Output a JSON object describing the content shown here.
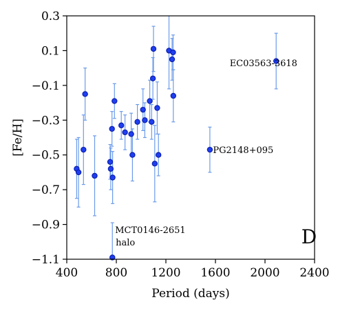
{
  "chart_data": {
    "type": "scatter",
    "xlabel": "Period (days)",
    "ylabel": "[Fe/H]",
    "xlim": [
      400,
      2400
    ],
    "ylim": [
      -1.1,
      0.3
    ],
    "xticks": [
      400,
      800,
      1200,
      1600,
      2000,
      2400
    ],
    "xtick_labels": [
      "400",
      "800",
      "1200",
      "1600",
      "2000",
      "2400"
    ],
    "yticks": [
      0.3,
      0.1,
      -0.1,
      -0.3,
      -0.5,
      -0.7,
      -0.9,
      -1.1
    ],
    "ytick_labels": [
      "0.3",
      "0.1",
      "−0.1",
      "−0.3",
      "−0.5",
      "−0.7",
      "−0.9",
      "−1.1"
    ],
    "grid": false,
    "colors": {
      "marker_face": "#1f3ff0",
      "marker_edge": "#0b1fb0",
      "errorbar": "#6b9bea"
    },
    "points": [
      {
        "x": 480,
        "y": -0.58,
        "err": 0.17
      },
      {
        "x": 495,
        "y": -0.6,
        "err": 0.2
      },
      {
        "x": 535,
        "y": -0.47,
        "err": 0.2
      },
      {
        "x": 548,
        "y": -0.15,
        "err": 0.15
      },
      {
        "x": 625,
        "y": -0.62,
        "err": 0.23
      },
      {
        "x": 750,
        "y": -0.54,
        "err": 0.1
      },
      {
        "x": 755,
        "y": -0.58,
        "err": 0.12
      },
      {
        "x": 765,
        "y": -0.35,
        "err": 0.1
      },
      {
        "x": 770,
        "y": -0.63,
        "err": 0.15
      },
      {
        "x": 768,
        "y": -1.09,
        "err": 0.2
      },
      {
        "x": 785,
        "y": -0.19,
        "err": 0.1
      },
      {
        "x": 840,
        "y": -0.33,
        "err": 0.08
      },
      {
        "x": 870,
        "y": -0.37,
        "err": 0.1
      },
      {
        "x": 920,
        "y": -0.38,
        "err": 0.12
      },
      {
        "x": 930,
        "y": -0.5,
        "err": 0.15
      },
      {
        "x": 970,
        "y": -0.31,
        "err": 0.1
      },
      {
        "x": 1015,
        "y": -0.24,
        "err": 0.12
      },
      {
        "x": 1030,
        "y": -0.3,
        "err": 0.1
      },
      {
        "x": 1070,
        "y": -0.19,
        "err": 0.12
      },
      {
        "x": 1085,
        "y": -0.31,
        "err": 0.1
      },
      {
        "x": 1095,
        "y": -0.06,
        "err": 0.12
      },
      {
        "x": 1100,
        "y": 0.11,
        "err": 0.13
      },
      {
        "x": 1110,
        "y": -0.55,
        "err": 0.22
      },
      {
        "x": 1130,
        "y": -0.23,
        "err": 0.15
      },
      {
        "x": 1140,
        "y": -0.5,
        "err": 0.12
      },
      {
        "x": 1225,
        "y": 0.1,
        "err": 0.22
      },
      {
        "x": 1250,
        "y": 0.05,
        "err": 0.12
      },
      {
        "x": 1258,
        "y": 0.09,
        "err": 0.1
      },
      {
        "x": 1260,
        "y": -0.16,
        "err": 0.15
      },
      {
        "x": 1555,
        "y": -0.47,
        "err": 0.13
      },
      {
        "x": 2090,
        "y": 0.04,
        "err": 0.16
      }
    ],
    "annotations": [
      {
        "text": "EC03563-3618",
        "x": 1715,
        "y": 0.01
      },
      {
        "text": "PG2148+095",
        "x": 1580,
        "y": -0.49
      },
      {
        "text": "MCT0146-2651",
        "x": 790,
        "y": -0.95
      },
      {
        "text": "halo",
        "x": 795,
        "y": -1.02
      }
    ],
    "panel_label": "D"
  }
}
